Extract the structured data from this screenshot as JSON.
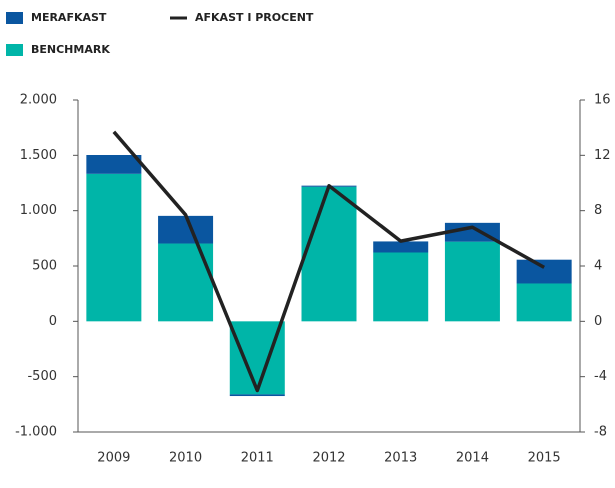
{
  "chart_data": {
    "type": "bar",
    "categories": [
      "2009",
      "2010",
      "2011",
      "2012",
      "2013",
      "2014",
      "2015"
    ],
    "series": [
      {
        "name": "BENCHMARK",
        "color": "#00b5a8",
        "values": [
          1333,
          703,
          -660,
          1216,
          622,
          720,
          342
        ]
      },
      {
        "name": "MERAFKAST",
        "color": "#0a56a0",
        "values": [
          170,
          250,
          -15,
          10,
          100,
          170,
          215
        ]
      },
      {
        "name": "AFKAST I PROCENT",
        "color": "#222222",
        "type": "line",
        "axis": "y2",
        "values": [
          13.7,
          7.7,
          -5.0,
          9.8,
          5.8,
          6.8,
          3.9
        ]
      }
    ],
    "ylim": [
      -1000,
      2000
    ],
    "yticks": [
      {
        "value": -1000,
        "label": "-1.000"
      },
      -500,
      0,
      500,
      {
        "value": 1000,
        "label": "1.000"
      },
      {
        "value": 1500,
        "label": "1.500"
      },
      {
        "value": 2000,
        "label": "2.000"
      }
    ],
    "y2lim": [
      -8,
      16
    ],
    "y2ticks": [
      -8,
      -4,
      0,
      4,
      8,
      12,
      16
    ]
  }
}
